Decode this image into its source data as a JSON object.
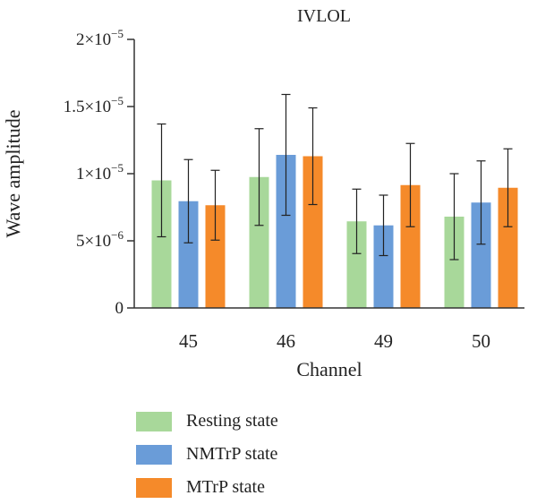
{
  "chart_data": {
    "type": "bar",
    "title": "IVLOL",
    "xlabel": "Channel",
    "ylabel": "Wave amplitude",
    "categories": [
      "45",
      "46",
      "49",
      "50"
    ],
    "ylim": [
      0,
      2e-05
    ],
    "yticks": [
      {
        "value": 0,
        "base": "0",
        "exp": ""
      },
      {
        "value": 5e-06,
        "base": "5×10",
        "exp": "−6"
      },
      {
        "value": 1e-05,
        "base": "1×10",
        "exp": "−5"
      },
      {
        "value": 1.5e-05,
        "base": "1.5×10",
        "exp": "−5"
      },
      {
        "value": 2e-05,
        "base": "2×10",
        "exp": "−5"
      }
    ],
    "series": [
      {
        "name": "Resting state",
        "color": "#a8d89a",
        "values": [
          9.5e-06,
          9.75e-06,
          6.45e-06,
          6.8e-06
        ],
        "errors": [
          4.2e-06,
          3.6e-06,
          2.4e-06,
          3.2e-06
        ]
      },
      {
        "name": "NMTrP state",
        "color": "#6a9cd8",
        "values": [
          7.95e-06,
          1.14e-05,
          6.15e-06,
          7.85e-06
        ],
        "errors": [
          3.1e-06,
          4.5e-06,
          2.25e-06,
          3.1e-06
        ]
      },
      {
        "name": "MTrP state",
        "color": "#f58a2a",
        "values": [
          7.65e-06,
          1.13e-05,
          9.15e-06,
          8.95e-06
        ],
        "errors": [
          2.6e-06,
          3.6e-06,
          3.1e-06,
          2.9e-06
        ]
      }
    ],
    "legend": {
      "position": "bottom"
    }
  }
}
